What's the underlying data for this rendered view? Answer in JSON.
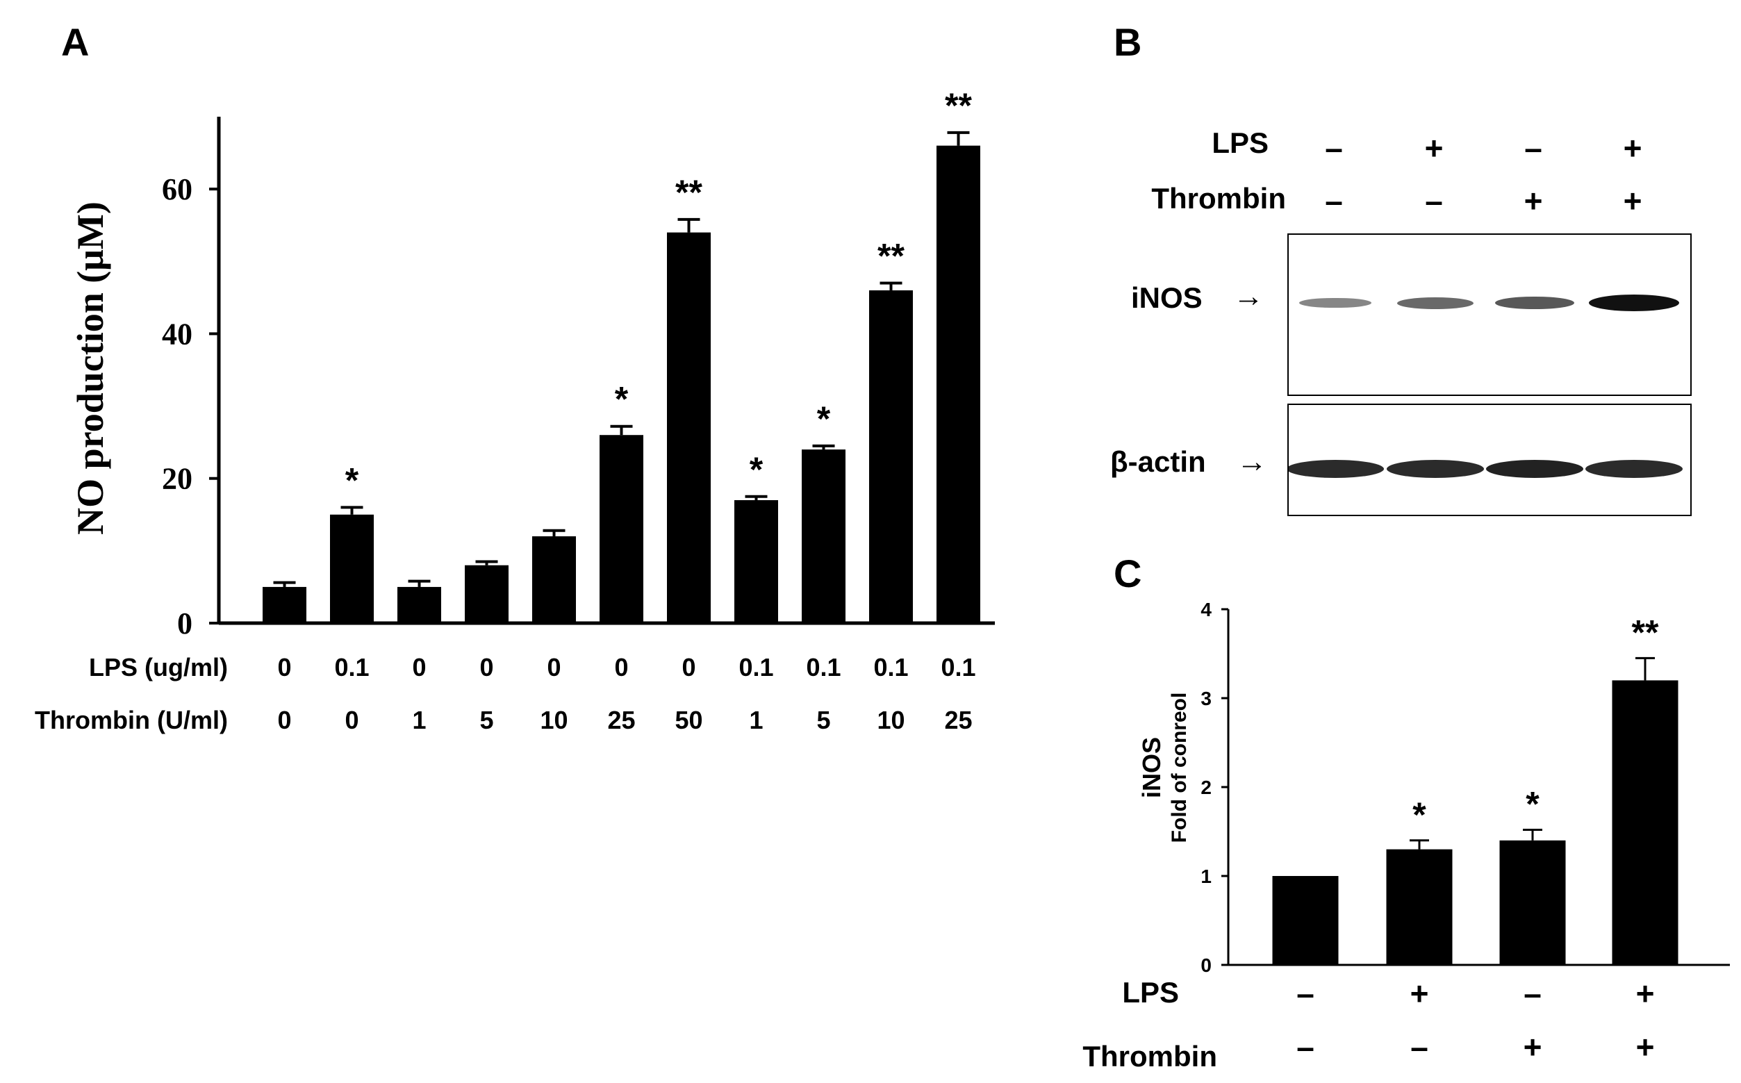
{
  "panels": {
    "a": "A",
    "b": "B",
    "c": "C"
  },
  "colors": {
    "bar": "#000000",
    "band": "#111111"
  },
  "panelA": {
    "row_labels": {
      "lps": "LPS (ug/ml)",
      "thrombin": "Thrombin (U/ml)"
    },
    "lps_values": [
      "0",
      "0.1",
      "0",
      "0",
      "0",
      "0",
      "0",
      "0.1",
      "0.1",
      "0.1",
      "0.1"
    ],
    "thrombin_values": [
      "0",
      "0",
      "1",
      "5",
      "10",
      "25",
      "50",
      "1",
      "5",
      "10",
      "25"
    ]
  },
  "panelB": {
    "row_labels": {
      "lps": "LPS",
      "thrombin": "Thrombin"
    },
    "lps_signs": [
      "–",
      "+",
      "–",
      "+"
    ],
    "thrombin_signs": [
      "–",
      "–",
      "+",
      "+"
    ],
    "band_labels": {
      "inos": "iNOS",
      "actin": "β-actin"
    },
    "arrow": "→",
    "inos_intensity": [
      0.35,
      0.5,
      0.6,
      1.0
    ],
    "actin_intensity": [
      0.85,
      0.85,
      0.9,
      0.85
    ]
  },
  "panelC": {
    "row_labels": {
      "lps": "LPS",
      "thrombin": "Thrombin"
    },
    "lps_signs": [
      "–",
      "+",
      "–",
      "+"
    ],
    "thrombin_signs": [
      "–",
      "–",
      "+",
      "+"
    ]
  },
  "chart_data": [
    {
      "id": "A",
      "type": "bar",
      "title": "",
      "xlabel": "",
      "ylabel": "NO production (μM)",
      "ylim": [
        0,
        70
      ],
      "yticks": [
        "0",
        "20",
        "40",
        "60"
      ],
      "values": [
        5,
        15,
        5,
        8,
        12,
        26,
        54,
        17,
        24,
        46,
        66
      ],
      "errors": [
        0.6,
        1.0,
        0.8,
        0.5,
        0.8,
        1.2,
        1.8,
        0.5,
        0.5,
        1.0,
        1.8
      ],
      "significance": [
        "",
        "*",
        "",
        "",
        "",
        "*",
        "**",
        "*",
        "*",
        "**",
        "**"
      ]
    },
    {
      "id": "C",
      "type": "bar",
      "title": "",
      "xlabel": "",
      "ylabel": "iNOS",
      "ylabel2": "Fold of conreol",
      "ylim": [
        0,
        4
      ],
      "yticks": [
        "0",
        "1",
        "2",
        "3",
        "4"
      ],
      "values": [
        1.0,
        1.3,
        1.4,
        3.2
      ],
      "errors": [
        0,
        0.1,
        0.12,
        0.25
      ],
      "significance": [
        "",
        "*",
        "*",
        "**"
      ]
    }
  ]
}
